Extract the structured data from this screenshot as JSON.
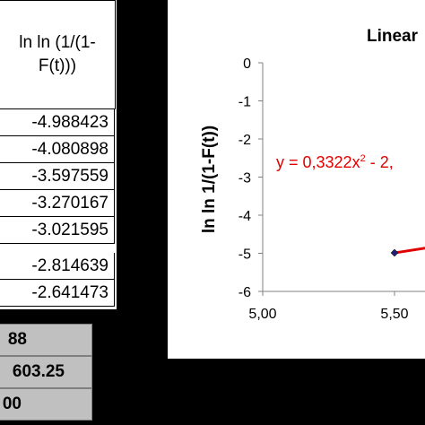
{
  "table": {
    "header_lines": [
      "ln ln (1/(1-",
      "F(t)))"
    ],
    "rows": [
      "-4.988423",
      "-4.080898",
      "-3.597559",
      "-3.270167",
      "-3.021595",
      "-2.814639",
      "-2.641473"
    ]
  },
  "summary": {
    "cells": [
      "88",
      "603.25",
      "00"
    ]
  },
  "chart_data": {
    "type": "scatter",
    "title": "Linear",
    "ylabel": "ln ln 1/(1-F(t))",
    "xlabel": "",
    "x_ticks": [
      "5,00",
      "5,50"
    ],
    "y_ticks": [
      "0",
      "-1",
      "-2",
      "-3",
      "-4",
      "-5",
      "-6"
    ],
    "xlim": [
      5.0,
      6.0
    ],
    "ylim": [
      -6,
      0
    ],
    "grid": false,
    "trendline_label": "y = 0,3322x",
    "trendline_superscript": "2",
    "trendline_label_tail": " - 2,",
    "series": [
      {
        "color": "#1f1f7a",
        "points": [
          [
            5.5,
            -4.988423
          ]
        ]
      }
    ],
    "trendline": {
      "color": "#e00000",
      "points": [
        [
          5.5,
          -4.99
        ],
        [
          6.0,
          -4.45
        ]
      ]
    }
  },
  "colors": {
    "trend": "#e00000",
    "marker": "#1f1f7a",
    "grey_cell": "#c0c0c0"
  }
}
